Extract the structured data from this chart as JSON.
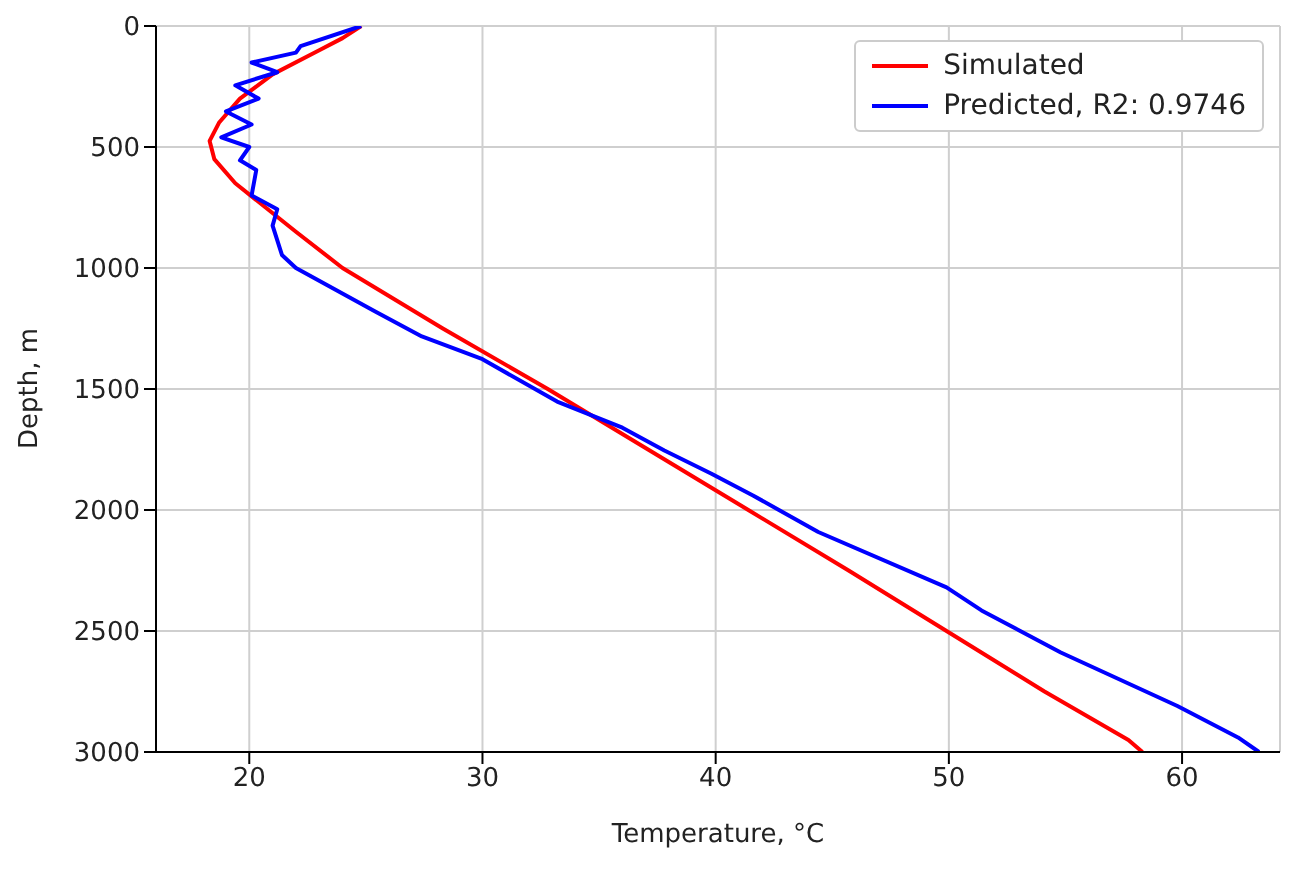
{
  "chart_data": {
    "type": "line",
    "xlabel": "Temperature, °C",
    "ylabel": "Depth, m",
    "xlim": [
      16,
      64.2
    ],
    "xticks": [
      20,
      30,
      40,
      50,
      60
    ],
    "ylim": [
      3000,
      0
    ],
    "yticks": [
      0,
      500,
      1000,
      1500,
      2000,
      2500,
      3000
    ],
    "grid": true,
    "legend": "top right",
    "series": [
      {
        "name": "Simulated",
        "color": "#ff0000",
        "x": [
          24.8,
          24.0,
          23.0,
          21.0,
          19.6,
          18.7,
          18.3,
          18.5,
          19.4,
          20.7,
          22.0,
          24.0,
          28.3,
          32.8,
          37.1,
          41.4,
          45.7,
          49.9,
          54.1,
          57.7,
          58.3
        ],
        "values": [
          0,
          50,
          100,
          200,
          300,
          400,
          475,
          550,
          650,
          750,
          850,
          1000,
          1250,
          1500,
          1750,
          2000,
          2250,
          2500,
          2750,
          2950,
          3000
        ]
      },
      {
        "name": "Predicted, R2: 0.9746",
        "color": "#0000ff",
        "x": [
          24.8,
          22.2,
          22.0,
          20.1,
          21.2,
          19.4,
          20.4,
          19.0,
          20.1,
          18.8,
          20.0,
          19.6,
          20.3,
          20.1,
          21.2,
          21.0,
          21.4,
          22.0,
          25.4,
          27.4,
          30.0,
          33.2,
          36.0,
          37.8,
          39.8,
          41.6,
          44.4,
          49.9,
          51.4,
          54.8,
          59.8,
          62.4,
          63.3
        ],
        "values": [
          0,
          83,
          110,
          151,
          191,
          245,
          300,
          353,
          407,
          460,
          500,
          555,
          595,
          700,
          757,
          825,
          946,
          1000,
          1180,
          1283,
          1377,
          1552,
          1660,
          1754,
          1849,
          1940,
          2091,
          2320,
          2415,
          2589,
          2810,
          2940,
          3000
        ]
      }
    ]
  }
}
